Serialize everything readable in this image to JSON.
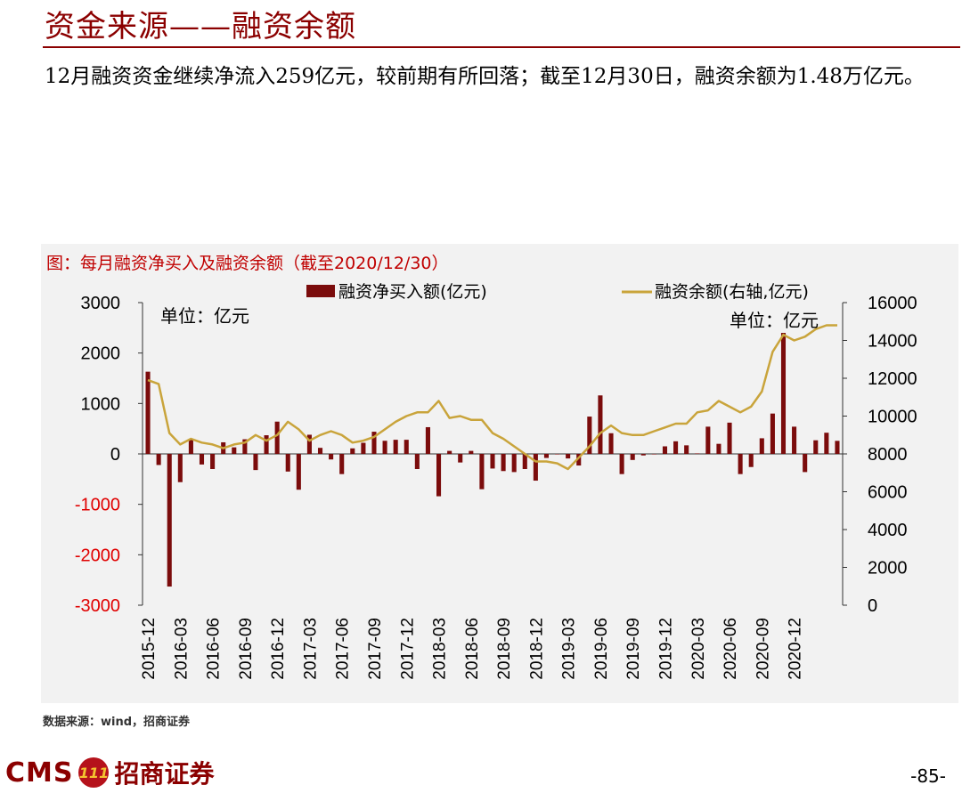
{
  "page": {
    "title": "资金来源——融资余额",
    "summary": "12月融资资金继续净流入259亿元，较前期有所回落；截至12月30日，融资余额为1.48万亿元。",
    "chart_caption": "图：每月融资净买入及融资余额（截至2020/12/30）",
    "source": "数据来源：wind，招商证券",
    "logo_text": "CMS",
    "logo_mark": "111",
    "logo_cn": "招商证券",
    "page_number": "-85-"
  },
  "chart_data": {
    "type": "bar+line",
    "x_tick_labels": [
      "2015-12",
      "2016-03",
      "2016-06",
      "2016-09",
      "2016-12",
      "2017-03",
      "2017-06",
      "2017-09",
      "2017-12",
      "2018-03",
      "2018-06",
      "2018-09",
      "2018-12",
      "2019-03",
      "2019-06",
      "2019-09",
      "2019-12",
      "2020-03",
      "2020-06",
      "2020-09",
      "2020-12"
    ],
    "left_unit": "单位：亿元",
    "right_unit": "单位：亿元",
    "left_ticks": [
      "3000",
      "2000",
      "1000",
      "0",
      "-1000",
      "-2000",
      "-3000"
    ],
    "right_ticks": [
      "16000",
      "14000",
      "12000",
      "10000",
      "8000",
      "6000",
      "4000",
      "2000",
      "0"
    ],
    "ylim_left": [
      -3000,
      3000
    ],
    "ylim_right": [
      0,
      16000
    ],
    "series": [
      {
        "name": "融资净买入额(亿元)",
        "type": "bar",
        "axis": "left",
        "color": "#7b0c0c",
        "values": [
          1630,
          -220,
          -2630,
          -560,
          290,
          -210,
          -300,
          230,
          130,
          290,
          -320,
          370,
          640,
          -350,
          -710,
          380,
          120,
          -110,
          -400,
          110,
          220,
          440,
          260,
          280,
          280,
          -300,
          530,
          -840,
          60,
          -170,
          60,
          -700,
          -290,
          -340,
          -360,
          -300,
          -530,
          -80,
          -10,
          -90,
          -230,
          740,
          1160,
          410,
          -400,
          -120,
          -30,
          -10,
          150,
          250,
          170,
          10,
          540,
          200,
          620,
          -400,
          -260,
          310,
          800,
          2400,
          540,
          -360,
          270,
          420,
          259
        ]
      },
      {
        "name": "融资余额(右轴,亿元)",
        "type": "line",
        "axis": "right",
        "color": "#c9a43b",
        "values": [
          11900,
          11700,
          9100,
          8500,
          8800,
          8600,
          8500,
          8300,
          8500,
          8600,
          9000,
          8700,
          9000,
          9700,
          9300,
          8700,
          9000,
          9200,
          9000,
          8600,
          8700,
          8900,
          9300,
          9700,
          10000,
          10200,
          10200,
          10800,
          9900,
          10000,
          9800,
          9800,
          9100,
          8800,
          8400,
          8000,
          7600,
          7600,
          7500,
          7200,
          7800,
          8400,
          9100,
          9500,
          9100,
          9000,
          9000,
          9200,
          9400,
          9600,
          9600,
          10200,
          10300,
          10800,
          10500,
          10200,
          10500,
          11300,
          13400,
          14300,
          14000,
          14200,
          14600,
          14800,
          14800
        ]
      }
    ]
  }
}
